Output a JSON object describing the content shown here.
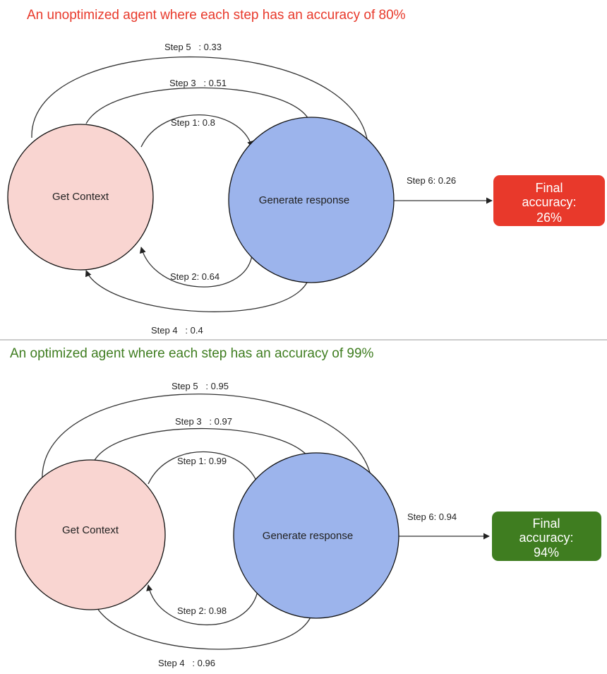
{
  "panels": [
    {
      "title": "An unoptimized agent where each step has an accuracy of 80%",
      "title_color": "#e8392b",
      "nodes": {
        "context": {
          "label": "Get Context",
          "fill": "#f9d5d1"
        },
        "generate": {
          "label": "Generate response",
          "fill": "#9cb4ec"
        }
      },
      "steps": {
        "step1": "Step 1: 0.8",
        "step2": "Step 2: 0.64",
        "step3": "Step 3   : 0.51",
        "step4": "Step 4   : 0.4",
        "step5": "Step 5   : 0.33",
        "step6": "Step 6: 0.26"
      },
      "result": {
        "line1": "Final",
        "line2": "accuracy:",
        "line3": "26%",
        "fill": "#e8392b"
      }
    },
    {
      "title": "An optimized agent where each step has an accuracy of 99%",
      "title_color": "#3f7d20",
      "nodes": {
        "context": {
          "label": "Get Context",
          "fill": "#f9d5d1"
        },
        "generate": {
          "label": "Generate response",
          "fill": "#9cb4ec"
        }
      },
      "steps": {
        "step1": "Step 1: 0.99",
        "step2": "Step 2: 0.98",
        "step3": "Step 3   : 0.97",
        "step4": "Step 4   : 0.96",
        "step5": "Step 5   : 0.95",
        "step6": "Step 6: 0.94"
      },
      "result": {
        "line1": "Final",
        "line2": "accuracy:",
        "line3": "94%",
        "fill": "#3f7d20"
      }
    }
  ]
}
